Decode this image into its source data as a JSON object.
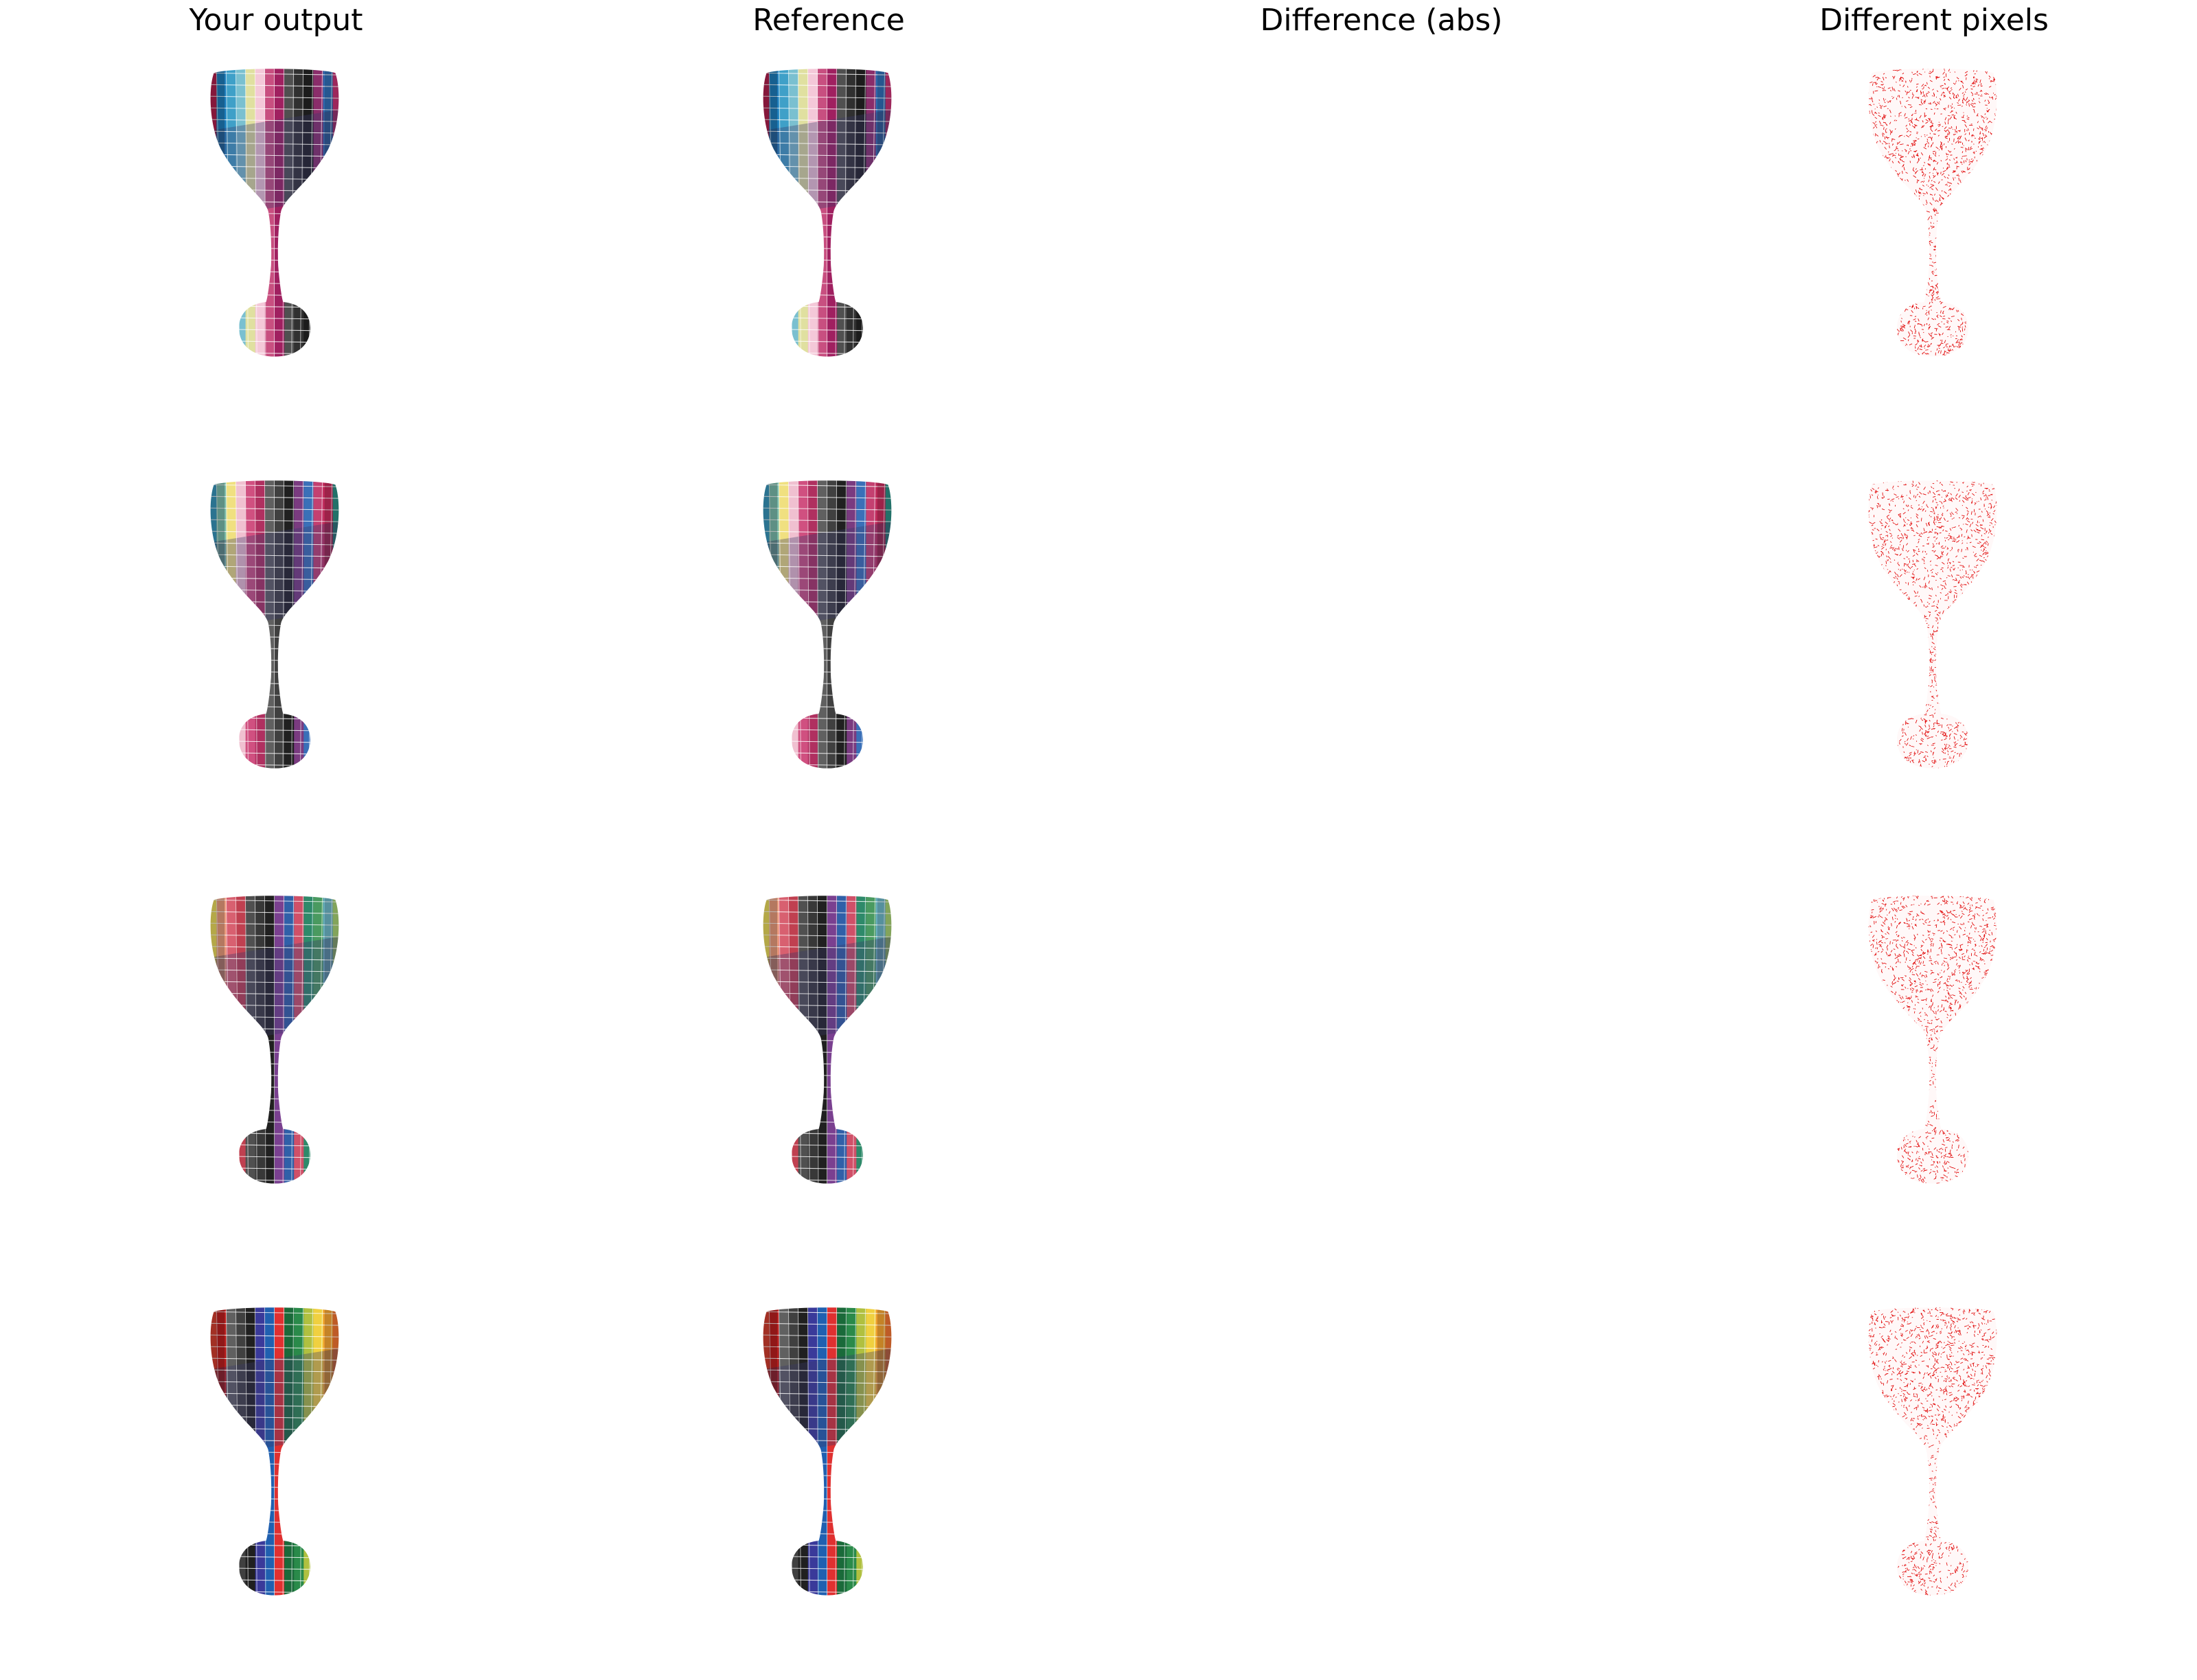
{
  "columns": {
    "output": "Your output",
    "reference": "Reference",
    "difference": "Difference (abs)",
    "different_pixels": "Different pixels"
  },
  "colors": {
    "diff_pixels": "#e00000",
    "background": "#ffffff",
    "grid_line": "#ffffff"
  },
  "rows": [
    {
      "palette": [
        "#b2204f",
        "#1f80c0",
        "#3fa0c8",
        "#7ac0d0",
        "#e0e0a0",
        "#f4c8d8",
        "#c84f80",
        "#a02060",
        "#505050",
        "#303030",
        "#1c1c1c",
        "#8a2d6a",
        "#2f6bb0",
        "#c03070"
      ]
    },
    {
      "palette": [
        "#c02a5a",
        "#2a8a80",
        "#3a9ac0",
        "#7ec0b0",
        "#f0e080",
        "#f0c0d0",
        "#d05080",
        "#b03060",
        "#606060",
        "#404040",
        "#202020",
        "#7a3b80",
        "#3a70b8",
        "#c44070"
      ]
    },
    {
      "palette": [
        "#2e8a6a",
        "#4a9a60",
        "#6ab0c0",
        "#a0c870",
        "#f0e060",
        "#f0a080",
        "#d86070",
        "#c04050",
        "#505050",
        "#383838",
        "#202020",
        "#7a4090",
        "#3060a8",
        "#d05068"
      ]
    },
    {
      "palette": [
        "#1a6a3a",
        "#2a8a4a",
        "#b0c040",
        "#f0d040",
        "#f0a030",
        "#e87030",
        "#d84030",
        "#c02020",
        "#606060",
        "#404040",
        "#202020",
        "#3a3a9a",
        "#2060b0",
        "#e03030"
      ]
    }
  ]
}
